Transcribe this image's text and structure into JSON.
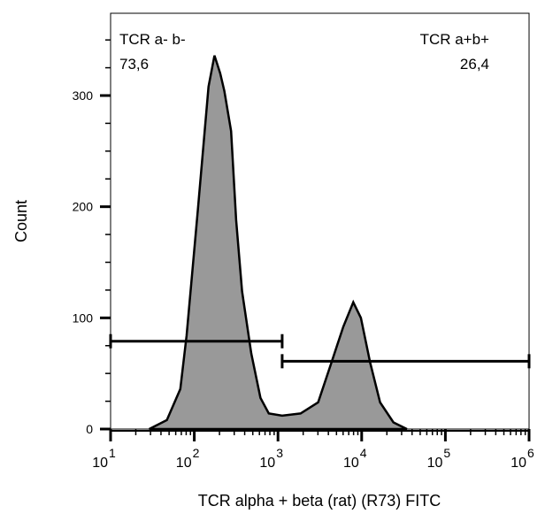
{
  "chart_data": {
    "type": "area",
    "xlabel": "TCR alpha + beta (rat) (R73) FITC",
    "ylabel": "Count",
    "x_scale": "log",
    "xlim": [
      10,
      1000000
    ],
    "ylim": [
      0,
      374
    ],
    "x_ticks": [
      {
        "base": "10",
        "exp": "1"
      },
      {
        "base": "10",
        "exp": "2"
      },
      {
        "base": "10",
        "exp": "3"
      },
      {
        "base": "10",
        "exp": "4"
      },
      {
        "base": "10",
        "exp": "5"
      },
      {
        "base": "10",
        "exp": "6"
      }
    ],
    "y_ticks": [
      "0",
      "100",
      "200",
      "300"
    ],
    "fill_color": "#999999",
    "line_color": "#000000",
    "x": [
      29,
      47,
      68,
      81,
      110,
      148,
      174,
      204,
      229,
      275,
      316,
      372,
      479,
      617,
      776,
      1122,
      1862,
      3020,
      4365,
      6026,
      7943,
      9772,
      12589,
      16596,
      23988,
      34674
    ],
    "y": [
      0,
      8,
      36,
      84,
      196,
      308,
      336,
      320,
      304,
      268,
      188,
      124,
      68,
      28,
      14,
      12,
      14,
      24,
      60,
      92,
      114,
      100,
      60,
      24,
      6,
      0
    ],
    "gates": [
      {
        "name": "TCR a- b-",
        "value": "73,6",
        "x_range": [
          10,
          1122
        ],
        "y": 79
      },
      {
        "name": "TCR a+b+",
        "value": "26,4",
        "x_range": [
          1122,
          1000000
        ],
        "y": 61
      }
    ]
  }
}
